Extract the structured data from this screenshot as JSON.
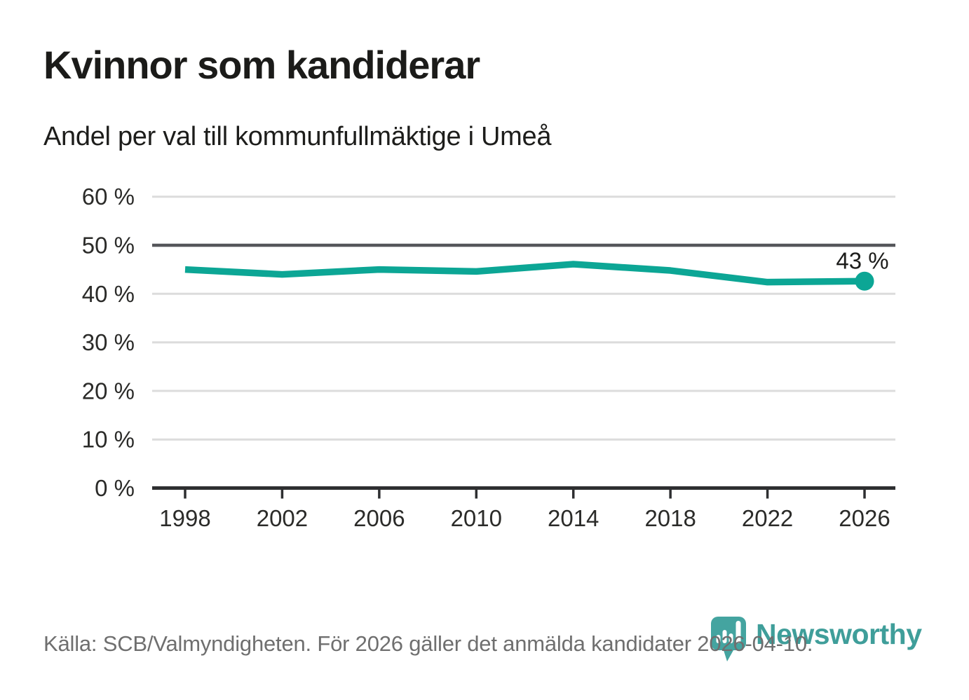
{
  "header": {
    "title": "Kvinnor som kandiderar",
    "subtitle": "Andel per val till kommunfullmäktige i Umeå"
  },
  "chart_data": {
    "type": "line",
    "title": "Kvinnor som kandiderar",
    "subtitle": "Andel per val till kommunfullmäktige i Umeå",
    "x": [
      1998,
      2002,
      2006,
      2010,
      2014,
      2018,
      2022,
      2026
    ],
    "x_tick_labels": [
      "1998",
      "2002",
      "2006",
      "2010",
      "2014",
      "2018",
      "2022",
      "2026"
    ],
    "series": [
      {
        "name": "Andel",
        "values": [
          45.0,
          44.0,
          45.0,
          44.6,
          46.1,
          44.8,
          42.4,
          42.6
        ]
      }
    ],
    "y_ticks": [
      0,
      10,
      20,
      30,
      40,
      50,
      60
    ],
    "y_tick_labels": [
      "0 %",
      "10 %",
      "20 %",
      "30 %",
      "40 %",
      "50 %",
      "60 %"
    ],
    "ylim": [
      0,
      60
    ],
    "reference_line": 50,
    "end_label": "43 %",
    "grid": "horizontal",
    "legend": "none",
    "colors": {
      "line": "#0ca695",
      "marker": "#0ca695",
      "reference": "#55565a",
      "grid": "#dcdcdc",
      "axis": "#2e2f31",
      "tick_text": "#2b2b29",
      "label_text": "#1d1d1b"
    }
  },
  "footer": {
    "source": "Källa: SCB/Valmyndigheten. För 2026 gäller det anmälda kandidater 2026-04-10.",
    "brand": "Newsworthy",
    "brand_color": "#3f9e9a"
  }
}
